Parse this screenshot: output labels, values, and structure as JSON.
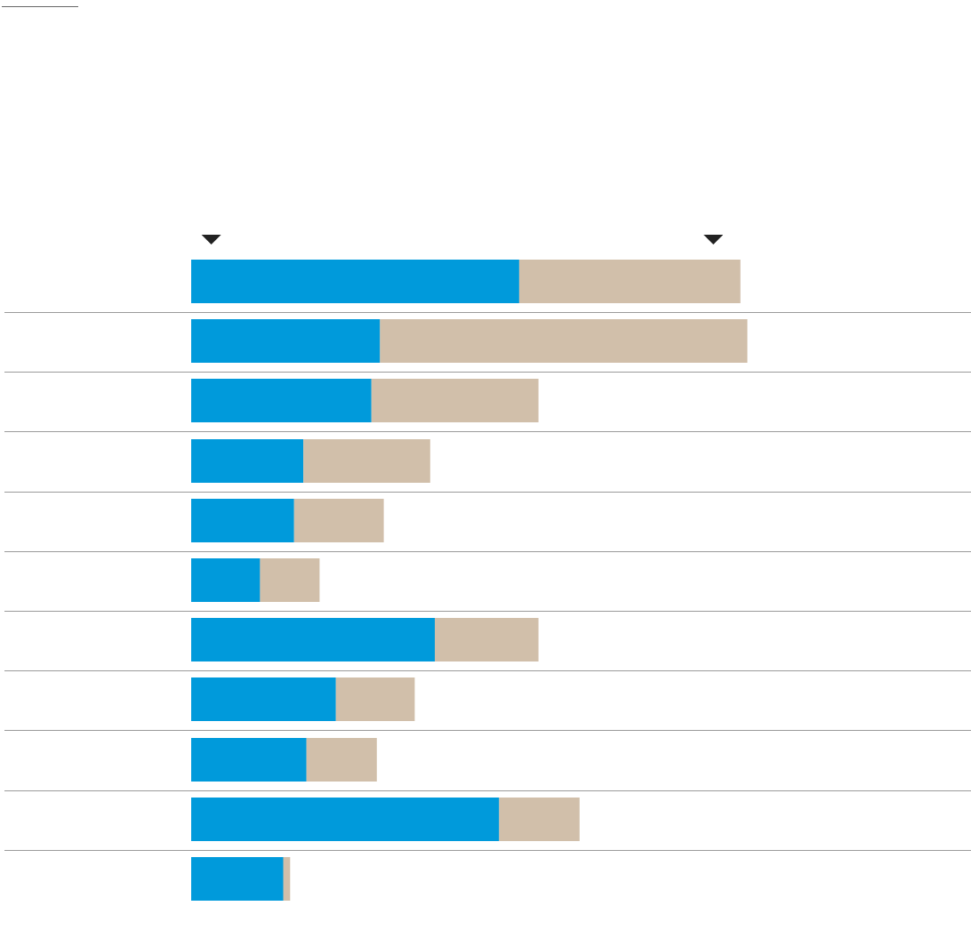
{
  "colors": {
    "primary": "#009ADB",
    "secondary": "#D1BFAA",
    "separator": "#9A9A9A",
    "marker": "#222222",
    "top_rule": "#666666"
  },
  "icons": {
    "markers": "triangle-down"
  },
  "chart_data": {
    "type": "bar",
    "orientation": "horizontal",
    "stacked": true,
    "title": "",
    "xlabel": "",
    "ylabel": "",
    "grid": false,
    "legend": "none",
    "xlim": [
      0,
      100
    ],
    "categories": [
      "",
      "",
      "",
      "",
      "",
      "",
      "",
      "",
      "",
      "",
      ""
    ],
    "series": [
      {
        "color": "#009ADB",
        "values": [
          42.4,
          24.4,
          23.3,
          14.5,
          13.3,
          8.9,
          31.5,
          18.7,
          14.9,
          39.8,
          11.9
        ]
      },
      {
        "color": "#D1BFAA",
        "values": [
          28.6,
          47.5,
          21.6,
          16.4,
          11.6,
          7.7,
          13.4,
          10.2,
          9.1,
          10.4,
          0.9
        ]
      }
    ],
    "markers": [
      2.6,
      67.5
    ]
  }
}
